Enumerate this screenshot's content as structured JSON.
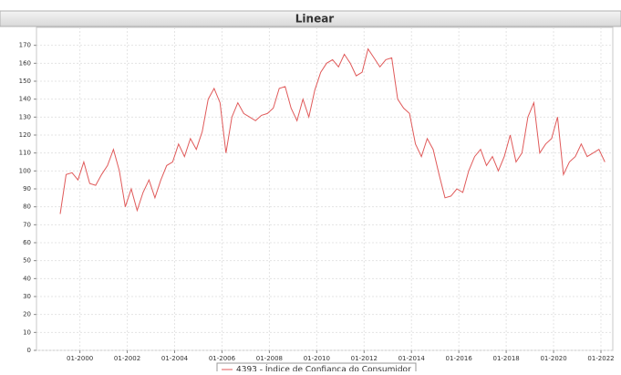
{
  "chart_data": {
    "type": "line",
    "title": "Linear",
    "x": [
      "1999-03",
      "1999-06",
      "1999-09",
      "1999-12",
      "2000-03",
      "2000-06",
      "2000-09",
      "2000-12",
      "2001-03",
      "2001-06",
      "2001-09",
      "2001-12",
      "2002-03",
      "2002-06",
      "2002-09",
      "2002-12",
      "2003-03",
      "2003-06",
      "2003-09",
      "2003-12",
      "2004-03",
      "2004-06",
      "2004-09",
      "2004-12",
      "2005-03",
      "2005-06",
      "2005-09",
      "2005-12",
      "2006-03",
      "2006-06",
      "2006-09",
      "2006-12",
      "2007-03",
      "2007-06",
      "2007-09",
      "2007-12",
      "2008-03",
      "2008-06",
      "2008-09",
      "2008-12",
      "2009-03",
      "2009-06",
      "2009-09",
      "2009-12",
      "2010-03",
      "2010-06",
      "2010-09",
      "2010-12",
      "2011-03",
      "2011-06",
      "2011-09",
      "2011-12",
      "2012-03",
      "2012-06",
      "2012-09",
      "2012-12",
      "2013-03",
      "2013-06",
      "2013-09",
      "2013-12",
      "2014-03",
      "2014-06",
      "2014-09",
      "2014-12",
      "2015-03",
      "2015-06",
      "2015-09",
      "2015-12",
      "2016-03",
      "2016-06",
      "2016-09",
      "2016-12",
      "2017-03",
      "2017-06",
      "2017-09",
      "2017-12",
      "2018-03",
      "2018-06",
      "2018-09",
      "2018-12",
      "2019-03",
      "2019-06",
      "2019-09",
      "2019-12",
      "2020-03",
      "2020-06",
      "2020-09",
      "2020-12",
      "2021-03",
      "2021-06",
      "2021-09",
      "2021-12",
      "2022-03"
    ],
    "series": [
      {
        "name": "4393 - Índice de Confiança do Consumidor",
        "color": "#e05a5a",
        "values": [
          76,
          98,
          99,
          95,
          105,
          93,
          92,
          98,
          103,
          112,
          100,
          80,
          90,
          78,
          88,
          95,
          85,
          95,
          103,
          105,
          115,
          108,
          118,
          112,
          122,
          140,
          146,
          138,
          110,
          130,
          138,
          132,
          130,
          128,
          131,
          132,
          135,
          146,
          147,
          135,
          128,
          140,
          130,
          145,
          155,
          160,
          162,
          158,
          165,
          160,
          153,
          155,
          168,
          163,
          158,
          162,
          163,
          140,
          135,
          132,
          115,
          108,
          118,
          112,
          98,
          85,
          86,
          90,
          88,
          100,
          108,
          112,
          103,
          108,
          100,
          108,
          120,
          105,
          110,
          130,
          138,
          110,
          115,
          118,
          130,
          98,
          105,
          108,
          115,
          108,
          110,
          112,
          105
        ]
      }
    ],
    "xlim": [
      "1998-03",
      "2022-07"
    ],
    "xticks": [
      {
        "value": "2000-01",
        "label": "01-2000"
      },
      {
        "value": "2002-01",
        "label": "01-2002"
      },
      {
        "value": "2004-01",
        "label": "01-2004"
      },
      {
        "value": "2006-01",
        "label": "01-2006"
      },
      {
        "value": "2008-01",
        "label": "01-2008"
      },
      {
        "value": "2010-01",
        "label": "01-2010"
      },
      {
        "value": "2012-01",
        "label": "01-2012"
      },
      {
        "value": "2014-01",
        "label": "01-2014"
      },
      {
        "value": "2016-01",
        "label": "01-2016"
      },
      {
        "value": "2018-01",
        "label": "01-2018"
      },
      {
        "value": "2020-01",
        "label": "01-2020"
      },
      {
        "value": "2022-01",
        "label": "01-2022"
      }
    ],
    "ylim": [
      0,
      180
    ],
    "yticks": [
      0,
      10,
      20,
      30,
      40,
      50,
      60,
      70,
      80,
      90,
      100,
      110,
      120,
      130,
      140,
      150,
      160,
      170
    ],
    "grid": true
  }
}
